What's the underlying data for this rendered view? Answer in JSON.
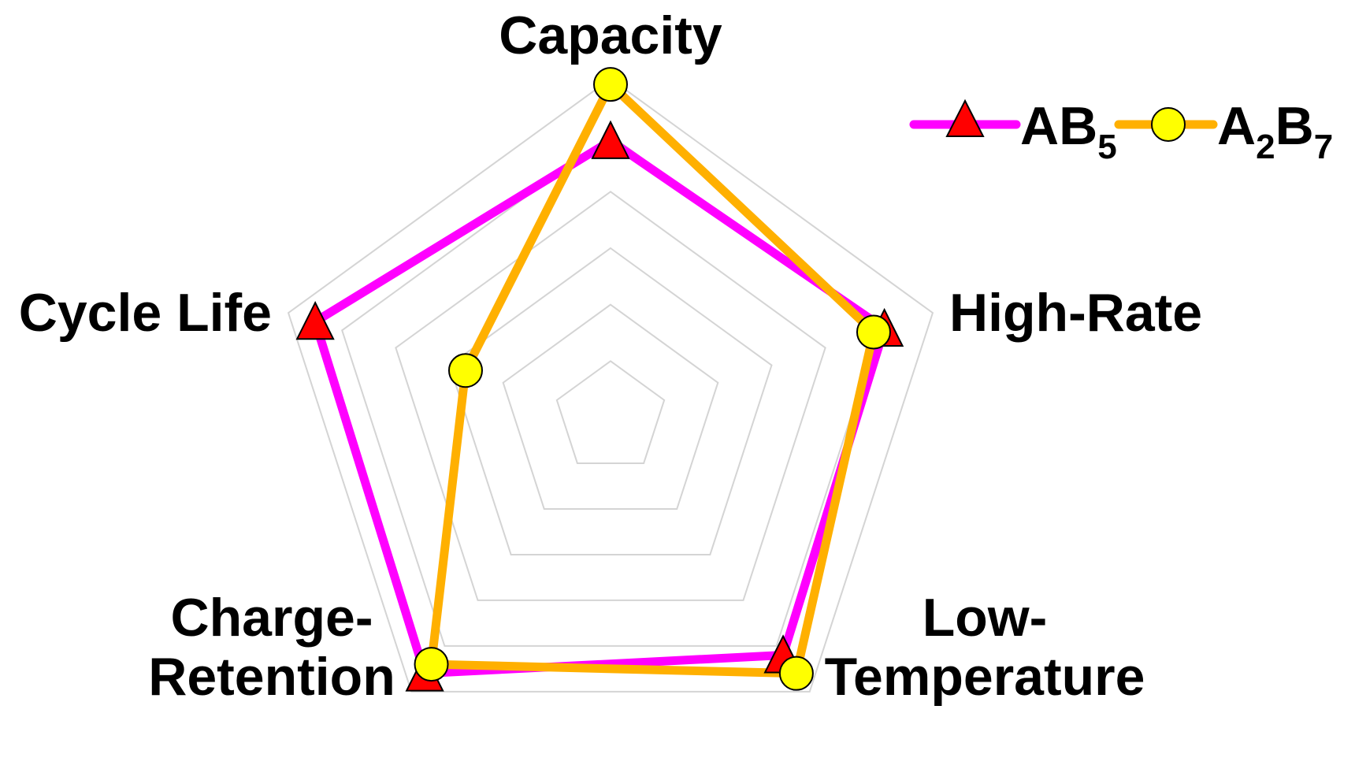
{
  "chart_data": {
    "type": "radar",
    "axes": [
      "Capacity",
      "High-Rate",
      "Low-Temperature",
      "Charge-Retention",
      "Cycle Life"
    ],
    "axis_label_lines": [
      [
        "Capacity"
      ],
      [
        "High-Rate"
      ],
      [
        "Low-",
        "Temperature"
      ],
      [
        "Charge-",
        "Retention"
      ],
      [
        "Cycle Life"
      ]
    ],
    "range": [
      0,
      6
    ],
    "grid_levels": 6,
    "grid": true,
    "legend_position": "top-right",
    "series": [
      {
        "name": "AB5",
        "name_base": "AB",
        "name_sub": "5",
        "values": [
          4.9,
          5.1,
          5.2,
          5.6,
          5.5
        ],
        "line_color": "#ff00ff",
        "marker": "triangle",
        "marker_color": "#ff0000"
      },
      {
        "name": "A2B7",
        "name_parts": [
          "A",
          "2",
          "B",
          "7"
        ],
        "values": [
          5.9,
          4.9,
          5.6,
          5.4,
          2.7
        ],
        "line_color": "#ffb000",
        "marker": "circle",
        "marker_color": "#ffff00"
      }
    ]
  }
}
